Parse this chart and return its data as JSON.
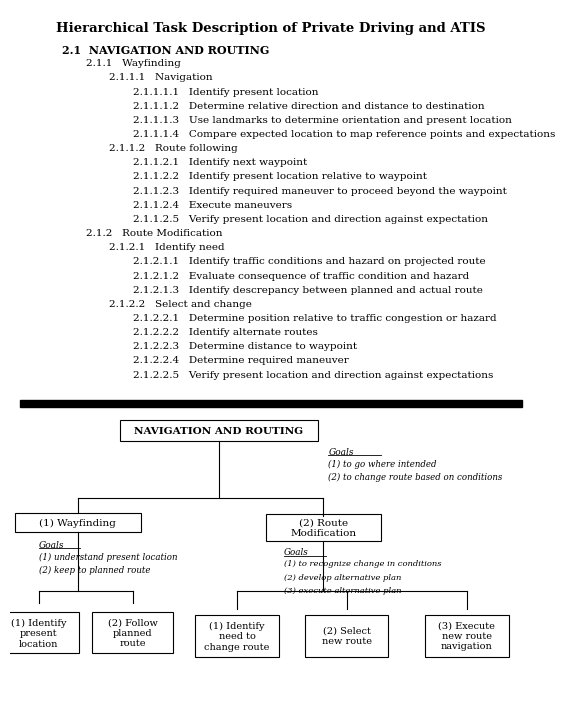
{
  "title": "Hierarchical Task Description of Private Driving and ATIS",
  "outline_text": [
    {
      "indent": 0,
      "text": "2.1  NAVIGATION AND ROUTING",
      "bold": true
    },
    {
      "indent": 1,
      "text": "2.1.1   Wayfinding",
      "bold": false
    },
    {
      "indent": 2,
      "text": "2.1.1.1   Navigation",
      "bold": false
    },
    {
      "indent": 3,
      "text": "2.1.1.1.1   Identify present location",
      "bold": false
    },
    {
      "indent": 3,
      "text": "2.1.1.1.2   Determine relative direction and distance to destination",
      "bold": false
    },
    {
      "indent": 3,
      "text": "2.1.1.1.3   Use landmarks to determine orientation and present location",
      "bold": false
    },
    {
      "indent": 3,
      "text": "2.1.1.1.4   Compare expected location to map reference points and expectations",
      "bold": false
    },
    {
      "indent": 2,
      "text": "2.1.1.2   Route following",
      "bold": false
    },
    {
      "indent": 3,
      "text": "2.1.1.2.1   Identify next waypoint",
      "bold": false
    },
    {
      "indent": 3,
      "text": "2.1.1.2.2   Identify present location relative to waypoint",
      "bold": false
    },
    {
      "indent": 3,
      "text": "2.1.1.2.3   Identify required maneuver to proceed beyond the waypoint",
      "bold": false
    },
    {
      "indent": 3,
      "text": "2.1.1.2.4   Execute maneuvers",
      "bold": false
    },
    {
      "indent": 3,
      "text": "2.1.1.2.5   Verify present location and direction against expectation",
      "bold": false
    },
    {
      "indent": 1,
      "text": "2.1.2   Route Modification",
      "bold": false
    },
    {
      "indent": 2,
      "text": "2.1.2.1   Identify need",
      "bold": false
    },
    {
      "indent": 3,
      "text": "2.1.2.1.1   Identify traffic conditions and hazard on projected route",
      "bold": false
    },
    {
      "indent": 3,
      "text": "2.1.2.1.2   Evaluate consequence of traffic condition and hazard",
      "bold": false
    },
    {
      "indent": 3,
      "text": "2.1.2.1.3   Identify descrepancy between planned and actual route",
      "bold": false
    },
    {
      "indent": 2,
      "text": "2.1.2.2   Select and change",
      "bold": false
    },
    {
      "indent": 3,
      "text": "2.1.2.2.1   Determine position relative to traffic congestion or hazard",
      "bold": false
    },
    {
      "indent": 3,
      "text": "2.1.2.2.2   Identify alternate routes",
      "bold": false
    },
    {
      "indent": 3,
      "text": "2.1.2.2.3   Determine distance to waypoint",
      "bold": false
    },
    {
      "indent": 3,
      "text": "2.1.2.2.4   Determine required maneuver",
      "bold": false
    },
    {
      "indent": 3,
      "text": "2.1.2.2.5   Verify present location and direction against expectations",
      "bold": false
    }
  ],
  "bg_color": "#ffffff",
  "text_color": "#000000"
}
